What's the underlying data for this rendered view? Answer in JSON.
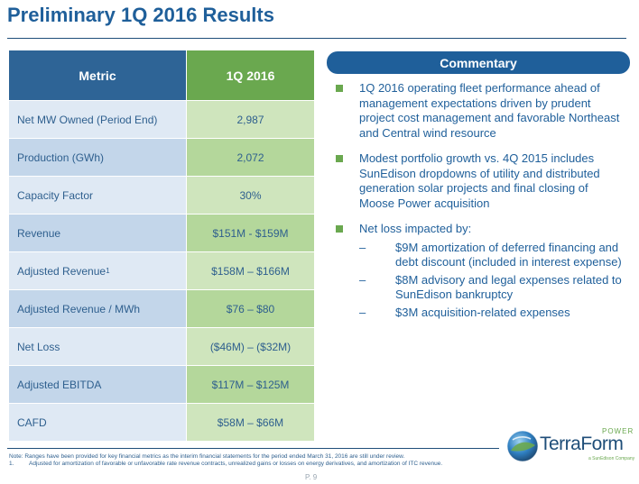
{
  "title": "Preliminary 1Q 2016 Results",
  "table": {
    "header": {
      "metric": "Metric",
      "period": "1Q 2016"
    },
    "rows": [
      {
        "metric": "Net MW Owned  (Period End)",
        "value": "2,987"
      },
      {
        "metric": "Production  (GWh)",
        "value": "2,072"
      },
      {
        "metric": "Capacity Factor",
        "value": "30%"
      },
      {
        "metric": "Revenue",
        "value": "$151M  -  $159M"
      },
      {
        "metric": "Adjusted  Revenue",
        "sup": "1",
        "value": "$158M  – $166M"
      },
      {
        "metric": "Adjusted  Revenue  / MWh",
        "value": "$76  – $80"
      },
      {
        "metric": "Net Loss",
        "value": "($46M)  – ($32M)"
      },
      {
        "metric": "Adjusted  EBITDA",
        "value": "$117M  – $125M"
      },
      {
        "metric": "CAFD",
        "value": "$58M  – $66M"
      }
    ]
  },
  "commentary": {
    "header": "Commentary",
    "bullets": [
      {
        "text": "1Q 2016 operating fleet performance ahead of management expectations driven by prudent project cost management and favorable Northeast and Central wind resource"
      },
      {
        "text": "Modest portfolio growth vs. 4Q 2015 includes SunEdison dropdowns of utility and distributed generation solar projects and final closing of Moose Power acquisition"
      },
      {
        "text": "Net loss impacted by:",
        "subs": [
          "$9M amortization of deferred financing and debt discount (included in interest expense)",
          "$8M advisory and legal expenses related to SunEdison bankruptcy",
          "$3M acquisition-related expenses"
        ]
      }
    ]
  },
  "footer": {
    "note": "Note: Ranges have been provided for key financial metrics as the interim financial statements for the period ended March 31, 2016 are still under review.",
    "footnote_number": "1.",
    "footnote": "Adjusted for amortization of favorable or unfavorable rate revenue contracts, unrealized gains or losses on energy derivatives, and amortization of ITC revenue.",
    "page": "P. 9"
  },
  "logo": {
    "name": "TerraForm",
    "power": "POWER",
    "tagline": "a SunEdison Company"
  },
  "colors": {
    "brand_blue": "#1f5f9a",
    "brand_green": "#6aa84f"
  }
}
